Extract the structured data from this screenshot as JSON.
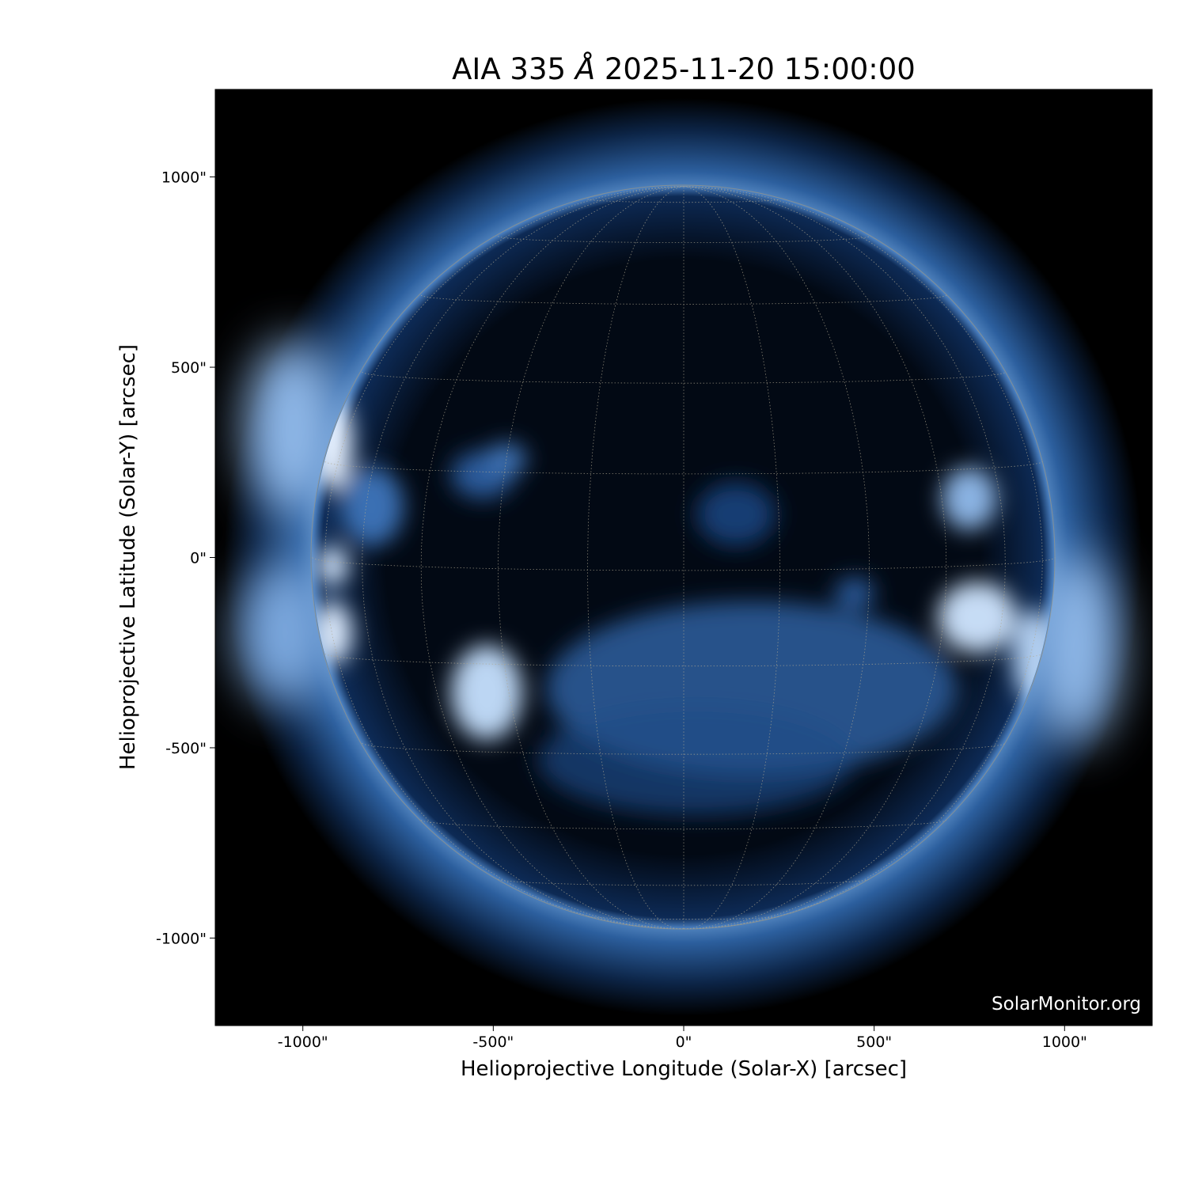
{
  "chart_data": {
    "type": "heatmap",
    "title_prefix": "AIA 335 ",
    "title_unit": "Å",
    "title_suffix": " 2025-11-20 15:00:00",
    "xlabel": "Helioprojective Longitude (Solar-X) [arcsec]",
    "ylabel": "Helioprojective Latitude (Solar-Y) [arcsec]",
    "xlim": [
      -1230,
      1230
    ],
    "ylim": [
      -1230,
      1230
    ],
    "xticks": [
      -1000,
      -500,
      0,
      500,
      1000
    ],
    "yticks": [
      1000,
      500,
      0,
      -500,
      -1000
    ],
    "xtick_labels": [
      "-1000\"",
      "-500\"",
      "0\"",
      "500\"",
      "1000\""
    ],
    "ytick_labels": [
      "1000\"",
      "500\"",
      "0\"",
      "-500\"",
      "-1000\""
    ],
    "solar_radius_arcsec": 975,
    "grid": "heliographic, 15° spacing, dotted",
    "colormap": "sdoaia335",
    "colors": {
      "background": "#000000",
      "mid": "#1f4f8f",
      "bright": "#e8f2ff",
      "grid": "#b0a890"
    }
  },
  "watermark": "SolarMonitor.org"
}
